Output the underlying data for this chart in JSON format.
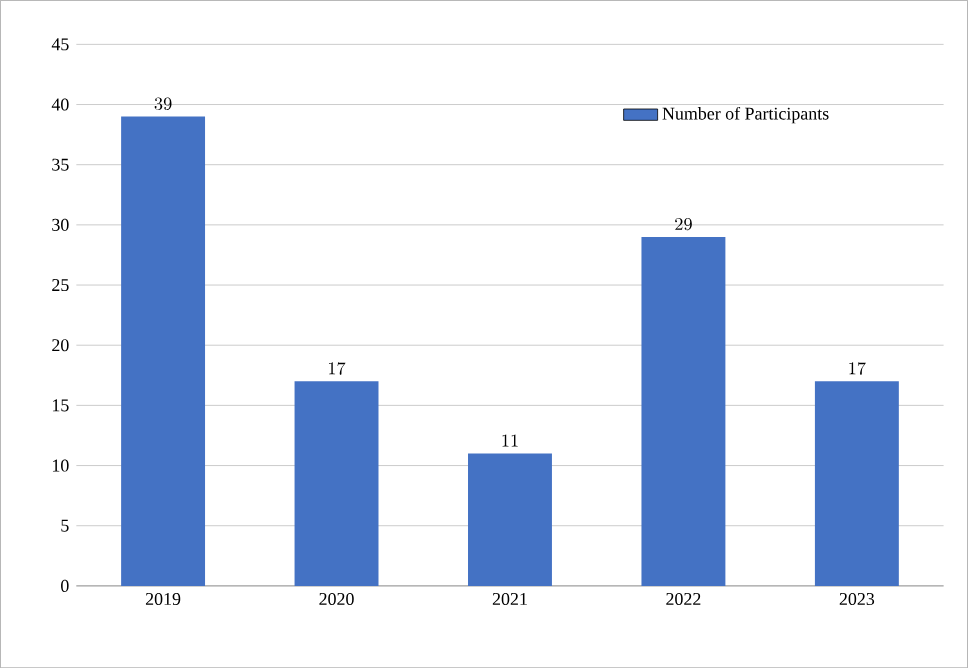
{
  "chart_data": {
    "type": "bar",
    "categories": [
      "2019",
      "2020",
      "2021",
      "2022",
      "2023"
    ],
    "series": [
      {
        "name": "Number of Participants",
        "color": "#4472c4",
        "values": [
          39,
          17,
          11,
          29,
          17
        ]
      }
    ],
    "ylim": [
      0,
      45
    ],
    "yticks": [
      0,
      5,
      10,
      15,
      20,
      25,
      30,
      35,
      40,
      45
    ],
    "grid": "y",
    "legend": "top right",
    "data_labels": true
  }
}
